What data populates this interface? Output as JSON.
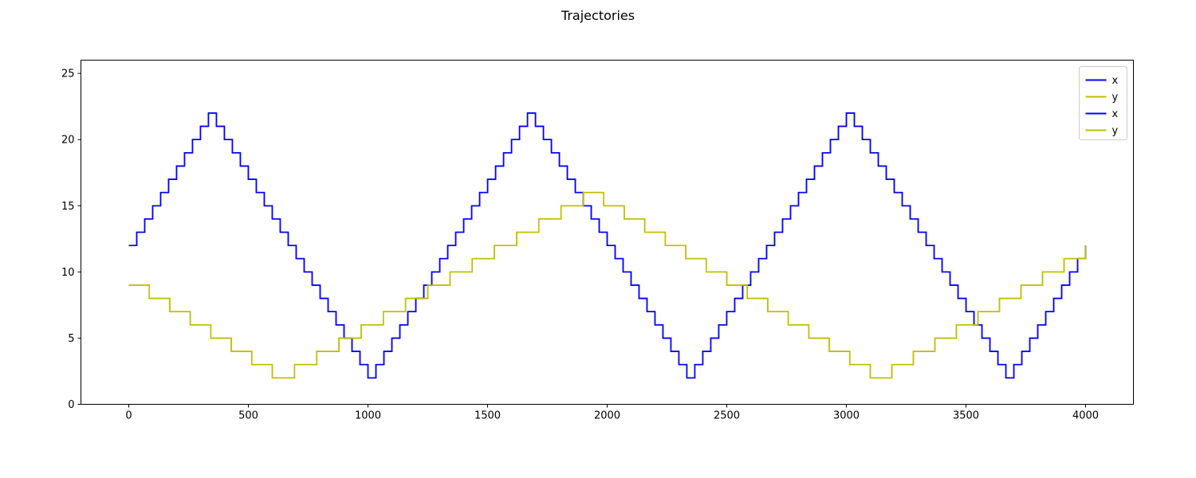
{
  "chart_data": {
    "type": "line",
    "title": "Trajectories",
    "xlabel": "",
    "ylabel": "",
    "xlim": [
      -200,
      4200
    ],
    "ylim": [
      0,
      26
    ],
    "x_ticks": [
      0,
      500,
      1000,
      1500,
      2000,
      2500,
      3000,
      3500,
      4000
    ],
    "y_ticks": [
      0,
      5,
      10,
      15,
      20,
      25
    ],
    "grid": false,
    "legend_position": "top-right",
    "series": [
      {
        "name": "x",
        "color": "#0000ff",
        "step": true,
        "x": [
          0,
          333,
          1000,
          1667,
          2333,
          3000,
          3667,
          4000
        ],
        "y": [
          12,
          22,
          2,
          22,
          2,
          22,
          2,
          12
        ]
      },
      {
        "name": "y",
        "color": "#bfbf00",
        "step": true,
        "x": [
          0,
          600,
          1900,
          3100,
          4000
        ],
        "y": [
          9,
          2,
          16,
          2,
          12
        ]
      },
      {
        "name": "x",
        "color": "#0000ff",
        "step": true,
        "x": [
          0,
          333,
          1000,
          1667,
          2333,
          3000,
          3667,
          4000
        ],
        "y": [
          12,
          22,
          2,
          22,
          2,
          22,
          2,
          12
        ]
      },
      {
        "name": "y",
        "color": "#bfbf00",
        "step": true,
        "x": [
          0,
          600,
          1900,
          3100,
          4000
        ],
        "y": [
          9,
          2,
          16,
          2,
          12
        ]
      }
    ]
  }
}
